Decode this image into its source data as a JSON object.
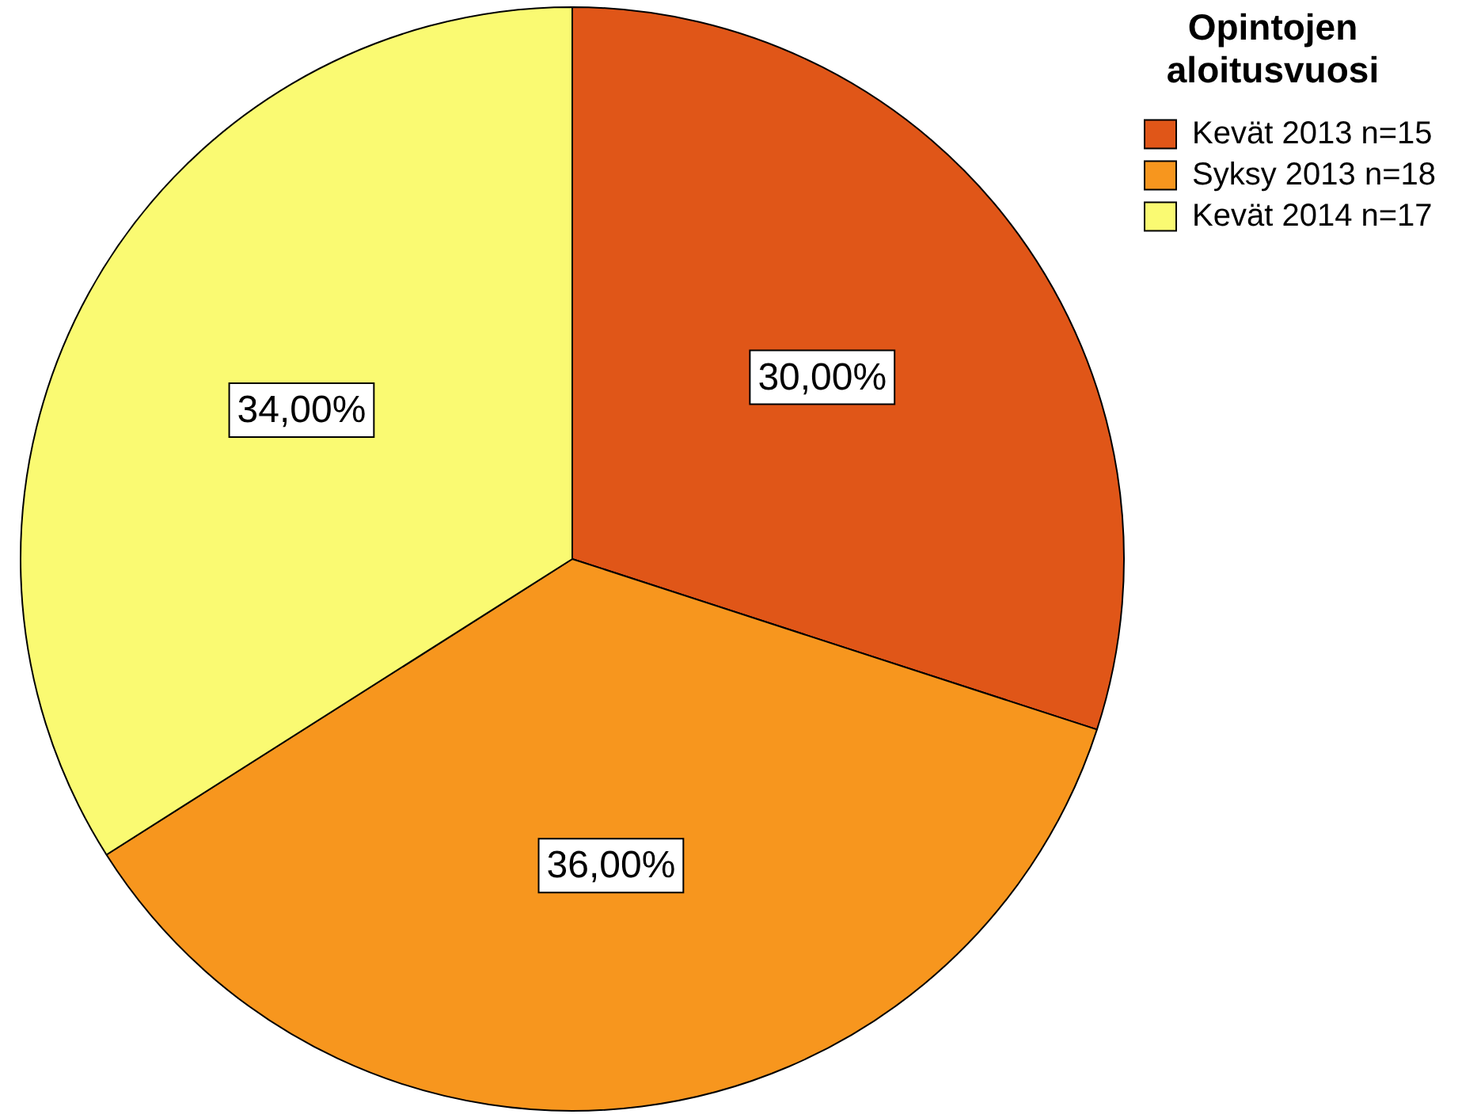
{
  "chart_data": {
    "type": "pie",
    "legend_title": "Opintojen aloitusvuosi",
    "categories": [
      "Kevät 2013 n=15",
      "Syksy 2013 n=18",
      "Kevät 2014 n=17"
    ],
    "values": [
      30,
      36,
      34
    ],
    "colors": [
      "#e05618",
      "#f7961e",
      "#fafa72"
    ],
    "value_labels": [
      "30,00%",
      "36,00%",
      "34,00%"
    ],
    "legend": "top right"
  }
}
